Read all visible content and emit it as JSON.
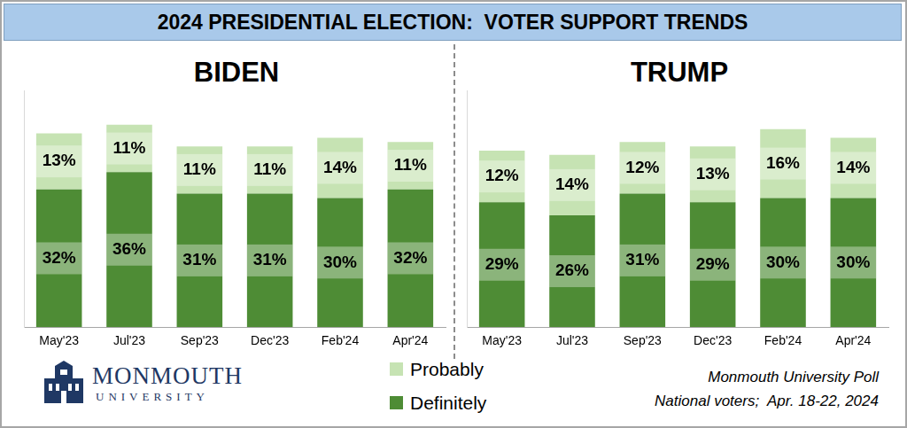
{
  "header": {
    "title": "2024 PRESIDENTIAL ELECTION:  VOTER SUPPORT TRENDS"
  },
  "chart_data": [
    {
      "type": "bar",
      "title": "BIDEN",
      "categories": [
        "May'23",
        "Jul'23",
        "Sep'23",
        "Dec'23",
        "Feb'24",
        "Apr'24"
      ],
      "series": [
        {
          "name": "Definitely",
          "color": "#4e8c35",
          "values": [
            32,
            36,
            31,
            31,
            30,
            32
          ],
          "value_labels": [
            "32%",
            "36%",
            "31%",
            "31%",
            "30%",
            "32%"
          ]
        },
        {
          "name": "Probably",
          "color": "#c6e3b3",
          "values": [
            13,
            11,
            11,
            11,
            14,
            11
          ],
          "value_labels": [
            "13%",
            "11%",
            "11%",
            "11%",
            "14%",
            "11%"
          ]
        }
      ],
      "stacked": true,
      "data_labels": true,
      "ylim": [
        0,
        55
      ],
      "tick_labels": "x",
      "grid": false,
      "legend": "bottom"
    },
    {
      "type": "bar",
      "title": "TRUMP",
      "categories": [
        "May'23",
        "Jul'23",
        "Sep'23",
        "Dec'23",
        "Feb'24",
        "Apr'24"
      ],
      "series": [
        {
          "name": "Definitely",
          "color": "#4e8c35",
          "values": [
            29,
            26,
            31,
            29,
            30,
            30
          ],
          "value_labels": [
            "29%",
            "26%",
            "31%",
            "29%",
            "30%",
            "30%"
          ]
        },
        {
          "name": "Probably",
          "color": "#c6e3b3",
          "values": [
            12,
            14,
            12,
            13,
            16,
            14
          ],
          "value_labels": [
            "12%",
            "14%",
            "12%",
            "13%",
            "16%",
            "14%"
          ]
        }
      ],
      "stacked": true,
      "data_labels": true,
      "ylim": [
        0,
        55
      ],
      "tick_labels": "x",
      "grid": false
    }
  ],
  "footer": {
    "logo": [
      "MONMOUTH",
      "UNIVERSITY"
    ],
    "source": [
      "Monmouth University Poll",
      "National voters;  Apr. 18-22, 2024"
    ]
  }
}
